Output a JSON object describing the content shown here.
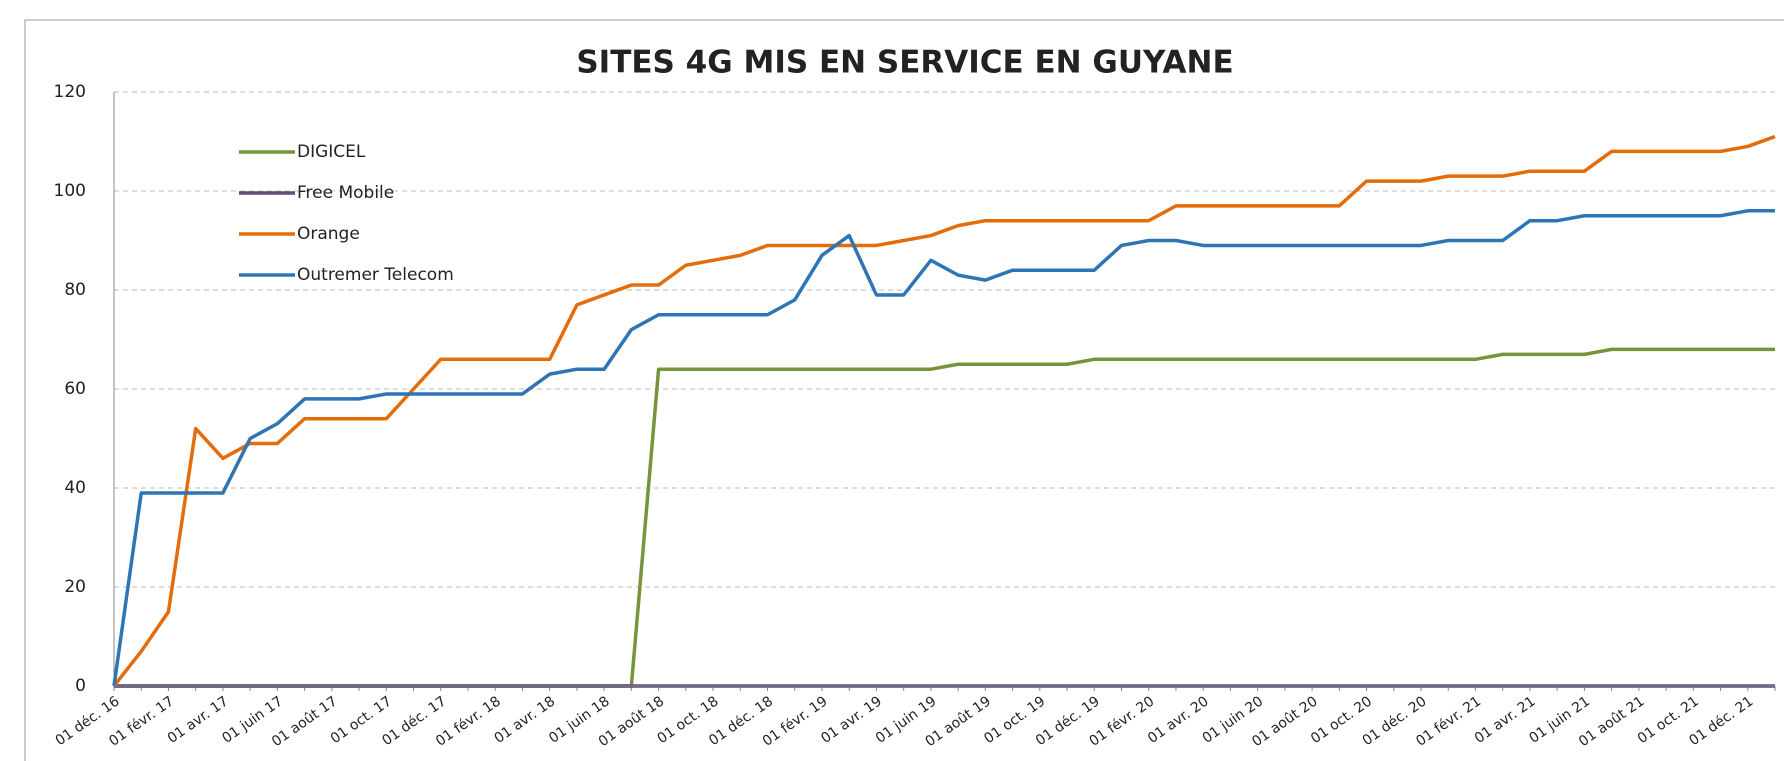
{
  "chart_data": {
    "type": "line",
    "title": "SITES 4G MIS EN SERVICE  EN GUYANE",
    "categories": [
      "01 déc. 16",
      null,
      "01 févr. 17",
      null,
      "01 avr. 17",
      null,
      "01 juin 17",
      null,
      "01 août 17",
      null,
      "01 oct. 17",
      null,
      "01 déc. 17",
      null,
      "01 févr. 18",
      null,
      "01 avr. 18",
      null,
      "01 juin 18",
      null,
      "01 août 18",
      null,
      "01 oct. 18",
      null,
      "01 déc. 18",
      null,
      "01 févr. 19",
      null,
      "01 avr. 19",
      null,
      "01 juin 19",
      null,
      "01 août 19",
      null,
      "01 oct. 19",
      null,
      "01 déc. 19",
      null,
      "01 févr. 20",
      null,
      "01 avr. 20",
      null,
      "01 juin 20",
      null,
      "01 août 20",
      null,
      "01 oct. 20",
      null,
      "01 déc. 20",
      null,
      "01 févr. 21",
      null,
      "01 avr. 21",
      null,
      "01 juin 21",
      null,
      "01 août 21",
      null,
      "01 oct. 21",
      null,
      "01 déc. 21",
      null
    ],
    "series": [
      {
        "name": "DIGICEL",
        "color": "#77933c",
        "values": [
          0,
          0,
          0,
          0,
          0,
          0,
          0,
          0,
          0,
          0,
          0,
          0,
          0,
          0,
          0,
          0,
          0,
          0,
          0,
          0,
          64,
          64,
          64,
          64,
          64,
          64,
          64,
          64,
          64,
          64,
          64,
          65,
          65,
          65,
          65,
          65,
          66,
          66,
          66,
          66,
          66,
          66,
          66,
          66,
          66,
          66,
          66,
          66,
          66,
          66,
          66,
          67,
          67,
          67,
          67,
          68,
          68,
          68,
          68,
          68,
          68,
          68
        ]
      },
      {
        "name": "Free Mobile",
        "color": "#604a7b",
        "values": [
          0,
          0,
          0,
          0,
          0,
          0,
          0,
          0,
          0,
          0,
          0,
          0,
          0,
          0,
          0,
          0,
          0,
          0,
          0,
          0,
          0,
          0,
          0,
          0,
          0,
          0,
          0,
          0,
          0,
          0,
          0,
          0,
          0,
          0,
          0,
          0,
          0,
          0,
          0,
          0,
          0,
          0,
          0,
          0,
          0,
          0,
          0,
          0,
          0,
          0,
          0,
          0,
          0,
          0,
          0,
          0,
          0,
          0,
          0,
          0,
          0,
          0
        ]
      },
      {
        "name": "Orange",
        "color": "#e46c0a",
        "values": [
          0,
          7,
          15,
          52,
          46,
          49,
          49,
          54,
          54,
          54,
          54,
          60,
          66,
          66,
          66,
          66,
          66,
          77,
          79,
          81,
          81,
          85,
          86,
          87,
          89,
          89,
          89,
          89,
          89,
          90,
          91,
          93,
          94,
          94,
          94,
          94,
          94,
          94,
          94,
          97,
          97,
          97,
          97,
          97,
          97,
          97,
          102,
          102,
          102,
          103,
          103,
          103,
          104,
          104,
          104,
          108,
          108,
          108,
          108,
          108,
          109,
          111
        ]
      },
      {
        "name": "Outremer Telecom",
        "color": "#2e75b6",
        "values": [
          0,
          39,
          39,
          39,
          39,
          50,
          53,
          58,
          58,
          58,
          59,
          59,
          59,
          59,
          59,
          59,
          63,
          64,
          64,
          72,
          75,
          75,
          75,
          75,
          75,
          78,
          87,
          91,
          79,
          79,
          86,
          83,
          82,
          84,
          84,
          84,
          84,
          89,
          90,
          90,
          89,
          89,
          89,
          89,
          89,
          89,
          89,
          89,
          89,
          90,
          90,
          90,
          94,
          94,
          95,
          95,
          95,
          95,
          95,
          95,
          96,
          96
        ]
      }
    ],
    "ylim": [
      0,
      120
    ],
    "yticks": [
      0,
      20,
      40,
      60,
      80,
      100,
      120
    ],
    "grid": true,
    "legend": "upper left"
  }
}
